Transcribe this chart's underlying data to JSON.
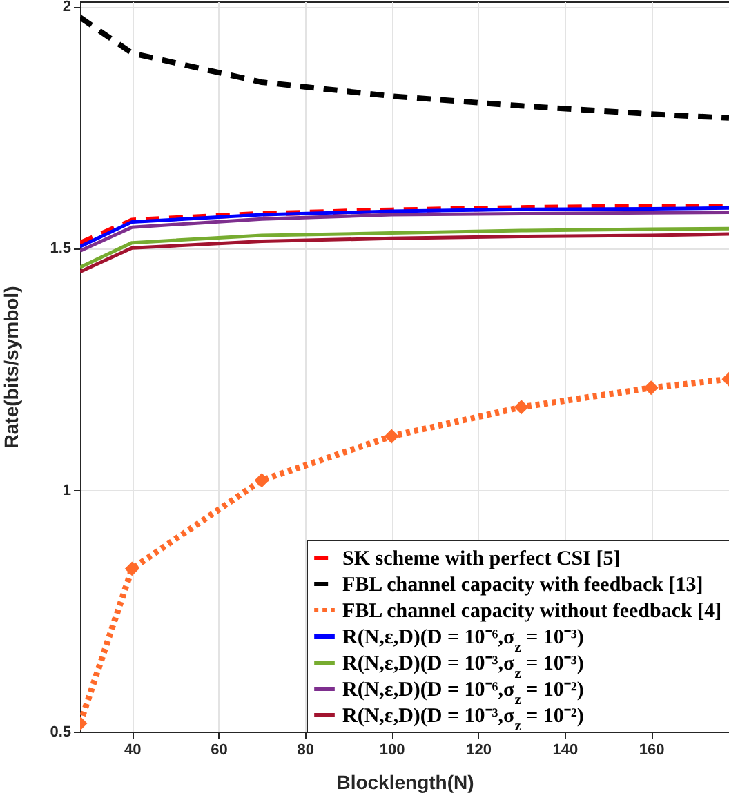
{
  "chart_data": {
    "type": "line",
    "xlabel": "Blocklength(N)",
    "ylabel": "Rate(bits/symbol)",
    "x": [
      28,
      40,
      70,
      100,
      130,
      160,
      178
    ],
    "xlim": [
      28,
      178
    ],
    "xticks": [
      40,
      60,
      80,
      100,
      120,
      140,
      160
    ],
    "ylim": [
      0.5,
      2.01
    ],
    "yticks": [
      0.5,
      1,
      1.5,
      2
    ],
    "grid": true,
    "legend": "bottom right",
    "series": [
      {
        "name": "SK scheme with perfect CSI [5]",
        "color": "#ff0000",
        "line_style": "dashed",
        "values": [
          1.51,
          1.557,
          1.571,
          1.578,
          1.583,
          1.586,
          1.586
        ]
      },
      {
        "name": "FBL channel capacity with feedback [13]",
        "color": "#000000",
        "line_style": "dashed",
        "values": [
          1.977,
          1.903,
          1.843,
          1.814,
          1.794,
          1.777,
          1.769
        ]
      },
      {
        "name": "FBL channel capacity without feedback [4]",
        "color": "#ff6a2a",
        "line_style": "dotted",
        "marker": "diamond",
        "values": [
          0.517,
          0.837,
          1.02,
          1.111,
          1.171,
          1.211,
          1.229
        ]
      },
      {
        "name": "R(N,ε,D)(D = 10⁻⁶,σ$_{z}$ = 10⁻³)",
        "color": "#0000ff",
        "line_style": "solid",
        "values": [
          1.503,
          1.554,
          1.569,
          1.576,
          1.58,
          1.581,
          1.583
        ]
      },
      {
        "name": "R(N,ε,D)(D = 10⁻³,σ$_{z}$ = 10⁻³)",
        "color": "#77ac30",
        "line_style": "solid",
        "values": [
          1.46,
          1.511,
          1.526,
          1.531,
          1.536,
          1.539,
          1.54
        ]
      },
      {
        "name": "R(N,ε,D)(D = 10⁻⁶,σ$_{z}$ = 10⁻²)",
        "color": "#7e2f8e",
        "line_style": "solid",
        "values": [
          1.494,
          1.543,
          1.56,
          1.569,
          1.571,
          1.573,
          1.574
        ]
      },
      {
        "name": "R(N,ε,D)(D = 10⁻³,σ$_{z}$ = 10⁻²)",
        "color": "#a2142f",
        "line_style": "solid",
        "values": [
          1.451,
          1.5,
          1.514,
          1.52,
          1.524,
          1.526,
          1.529
        ]
      }
    ]
  }
}
